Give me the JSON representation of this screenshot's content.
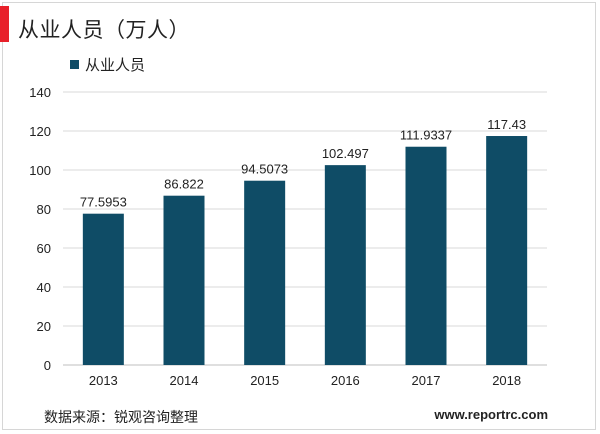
{
  "header": {
    "title": "从业人员（万人）"
  },
  "footer": {
    "source": "数据来源：锐观咨询整理",
    "site": "www.reportrc.com"
  },
  "colors": {
    "bar": "#0f4c66",
    "accent": "#e8202a",
    "grid": "#d9d9d9",
    "axis": "#bfbfbf",
    "text": "#222222"
  },
  "chart_data": {
    "type": "bar",
    "categories": [
      "2013",
      "2014",
      "2015",
      "2016",
      "2017",
      "2018"
    ],
    "series": [
      {
        "name": "从业人员",
        "values": [
          77.5953,
          86.822,
          94.5073,
          102.497,
          111.9337,
          117.43
        ]
      }
    ],
    "data_labels": [
      "77.5953",
      "86.822",
      "94.5073",
      "102.497",
      "111.9337",
      "117.43"
    ],
    "ylim": [
      0,
      140
    ],
    "yticks": [
      "0",
      "20",
      "40",
      "60",
      "80",
      "100",
      "120",
      "140"
    ],
    "grid": true,
    "legend_position": "top-left"
  }
}
